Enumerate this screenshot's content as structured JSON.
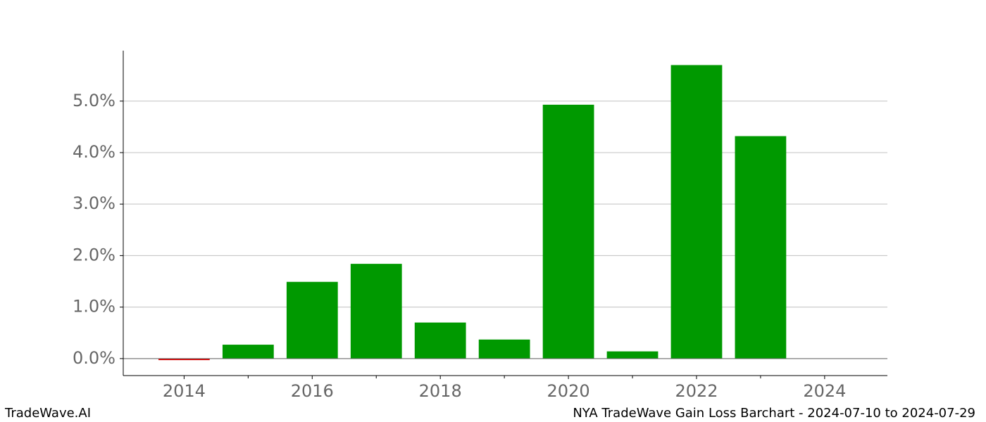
{
  "chart_data": {
    "type": "bar",
    "x": [
      2014,
      2015,
      2016,
      2017,
      2018,
      2019,
      2020,
      2021,
      2022,
      2023
    ],
    "values": [
      -0.03,
      0.27,
      1.49,
      1.84,
      0.7,
      0.37,
      4.93,
      0.14,
      5.7,
      4.32
    ],
    "color_positive": "#009900",
    "color_negative": "#dd0000",
    "xlim": [
      2013.05,
      2024.98
    ],
    "xticks": [
      2014,
      2016,
      2018,
      2020,
      2022,
      2024
    ],
    "xticks_minor": [
      2015,
      2017,
      2019,
      2021,
      2023
    ],
    "ylim": [
      -0.33,
      5.98
    ],
    "yticks": [
      {
        "value": 0,
        "label": "0.0%"
      },
      {
        "value": 1,
        "label": "1.0%"
      },
      {
        "value": 2,
        "label": "2.0%"
      },
      {
        "value": 3,
        "label": "3.0%"
      },
      {
        "value": 4,
        "label": "4.0%"
      },
      {
        "value": 5,
        "label": "5.0%"
      }
    ],
    "grid": true
  },
  "footer": {
    "brand": "TradeWave.AI",
    "caption": "NYA TradeWave Gain Loss Barchart - 2024-07-10 to 2024-07-29"
  }
}
